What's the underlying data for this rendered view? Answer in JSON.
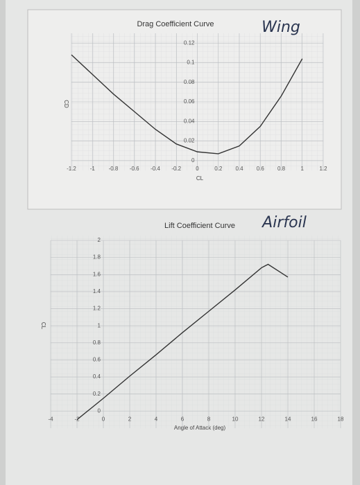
{
  "chart_data": [
    {
      "type": "line",
      "title": "Drag Coefficient Curve",
      "xlabel": "CL",
      "ylabel": "CD",
      "annotation": "Wing",
      "x": [
        -1.2,
        -1.0,
        -0.8,
        -0.6,
        -0.4,
        -0.2,
        0,
        0.2,
        0.4,
        0.6,
        0.8,
        1.0
      ],
      "series": [
        {
          "color": "#333333",
          "values": [
            0.108,
            0.088,
            0.068,
            0.05,
            0.032,
            0.017,
            0.009,
            0.007,
            0.015,
            0.035,
            0.066,
            0.104
          ]
        }
      ],
      "xlim": [
        -1.2,
        1.2
      ],
      "xticks": [
        -1.2,
        -1,
        -0.8,
        -0.6,
        -0.4,
        -0.2,
        0,
        0.2,
        0.4,
        0.6,
        0.8,
        1,
        1.2
      ],
      "ylim": [
        -0.01,
        0.13
      ],
      "yticks": [
        0,
        0.02,
        0.04,
        0.06,
        0.08,
        0.1,
        0.12
      ],
      "grid": true
    },
    {
      "type": "line",
      "title": "Lift Coefficient Curve",
      "xlabel": "Angle of Attack (deg)",
      "ylabel": "CL",
      "annotation": "Airfoil",
      "x": [
        -2,
        0,
        2,
        4,
        6,
        8,
        10,
        12,
        12.5,
        14
      ],
      "series": [
        {
          "color": "#333333",
          "values": [
            -0.1,
            0.15,
            0.41,
            0.66,
            0.92,
            1.17,
            1.42,
            1.68,
            1.72,
            1.57
          ]
        }
      ],
      "xlim": [
        -4,
        18
      ],
      "xticks": [
        -4,
        -2,
        0,
        2,
        4,
        6,
        8,
        10,
        12,
        14,
        16,
        18
      ],
      "ylim": [
        -0.2,
        2
      ],
      "yticks": [
        0,
        0.2,
        0.4,
        0.6,
        0.8,
        1,
        1.2,
        1.4,
        1.6,
        1.8,
        2
      ],
      "grid": true
    }
  ]
}
